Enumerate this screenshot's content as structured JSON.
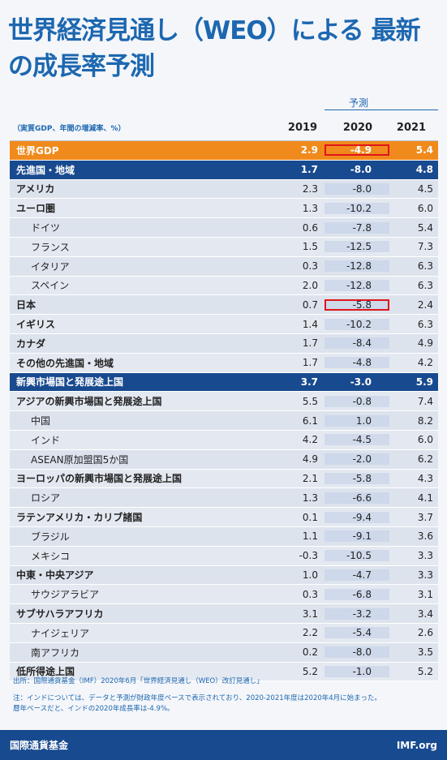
{
  "title_line1": "世界経済見通し（WEO）による 最新",
  "title_line2": "の成長率予測",
  "forecast_label": "予測",
  "unit_label": "（実質GDP、年間の増減率、%）",
  "years": [
    "2019",
    "2020",
    "2021"
  ],
  "rows": [
    {
      "label": "世界GDP",
      "v2019": "2.9",
      "v2020": "-4.9",
      "v2021": "5.4"
    },
    {
      "label": "先進国・地域",
      "v2019": "1.7",
      "v2020": "-8.0",
      "v2021": "4.8"
    },
    {
      "label": "アメリカ",
      "v2019": "2.3",
      "v2020": "-8.0",
      "v2021": "4.5"
    },
    {
      "label": "ユーロ圏",
      "v2019": "1.3",
      "v2020": "-10.2",
      "v2021": "6.0"
    },
    {
      "label": "ドイツ",
      "v2019": "0.6",
      "v2020": "-7.8",
      "v2021": "5.4"
    },
    {
      "label": "フランス",
      "v2019": "1.5",
      "v2020": "-12.5",
      "v2021": "7.3"
    },
    {
      "label": "イタリア",
      "v2019": "0.3",
      "v2020": "-12.8",
      "v2021": "6.3"
    },
    {
      "label": "スペイン",
      "v2019": "2.0",
      "v2020": "-12.8",
      "v2021": "6.3"
    },
    {
      "label": "日本",
      "v2019": "0.7",
      "v2020": "-5.8",
      "v2021": "2.4"
    },
    {
      "label": "イギリス",
      "v2019": "1.4",
      "v2020": "-10.2",
      "v2021": "6.3"
    },
    {
      "label": "カナダ",
      "v2019": "1.7",
      "v2020": "-8.4",
      "v2021": "4.9"
    },
    {
      "label": "その他の先進国・地域",
      "v2019": "1.7",
      "v2020": "-4.8",
      "v2021": "4.2"
    },
    {
      "label": "新興市場国と発展途上国",
      "v2019": "3.7",
      "v2020": "-3.0",
      "v2021": "5.9"
    },
    {
      "label": "アジアの新興市場国と発展途上国",
      "v2019": "5.5",
      "v2020": "-0.8",
      "v2021": "7.4"
    },
    {
      "label": "中国",
      "v2019": "6.1",
      "v2020": "1.0",
      "v2021": "8.2"
    },
    {
      "label": "インド",
      "v2019": "4.2",
      "v2020": "-4.5",
      "v2021": "6.0"
    },
    {
      "label": "ASEAN原加盟国5か国",
      "v2019": "4.9",
      "v2020": "-2.0",
      "v2021": "6.2"
    },
    {
      "label": "ヨーロッパの新興市場国と発展途上国",
      "v2019": "2.1",
      "v2020": "-5.8",
      "v2021": "4.3"
    },
    {
      "label": "ロシア",
      "v2019": "1.3",
      "v2020": "-6.6",
      "v2021": "4.1"
    },
    {
      "label": "ラテンアメリカ・カリブ諸国",
      "v2019": "0.1",
      "v2020": "-9.4",
      "v2021": "3.7"
    },
    {
      "label": "ブラジル",
      "v2019": "1.1",
      "v2020": "-9.1",
      "v2021": "3.6"
    },
    {
      "label": "メキシコ",
      "v2019": "-0.3",
      "v2020": "-10.5",
      "v2021": "3.3"
    },
    {
      "label": "中東・中央アジア",
      "v2019": "1.0",
      "v2020": "-4.7",
      "v2021": "3.3"
    },
    {
      "label": "サウジアラビア",
      "v2019": "0.3",
      "v2020": "-6.8",
      "v2021": "3.1"
    },
    {
      "label": "サブサハラアフリカ",
      "v2019": "3.1",
      "v2020": "-3.2",
      "v2021": "3.4"
    },
    {
      "label": "ナイジェリア",
      "v2019": "2.2",
      "v2020": "-5.4",
      "v2021": "2.6"
    },
    {
      "label": "南アフリカ",
      "v2019": "0.2",
      "v2020": "-8.0",
      "v2021": "3.5"
    },
    {
      "label": "低所得途上国",
      "v2019": "5.2",
      "v2020": "-1.0",
      "v2021": "5.2"
    }
  ],
  "source_note": "出所：国際通貨基金（IMF）2020年6月「世界経済見通し（WEO）改訂見通し」",
  "note_line1": "注：インドについては、データと予測が財政年度ベースで表示されており、2020-2021年度は2020年4月に始まった。",
  "note_line2": "暦年ベースだと、インドの2020年成長率は-4.9%。",
  "footer_left": "国際通貨基金",
  "footer_right": "IMF.org",
  "colors": {
    "accent": "#1d67b0",
    "band": "#184a8f",
    "world": "#f08a1c",
    "highlight": "#e0151b"
  }
}
